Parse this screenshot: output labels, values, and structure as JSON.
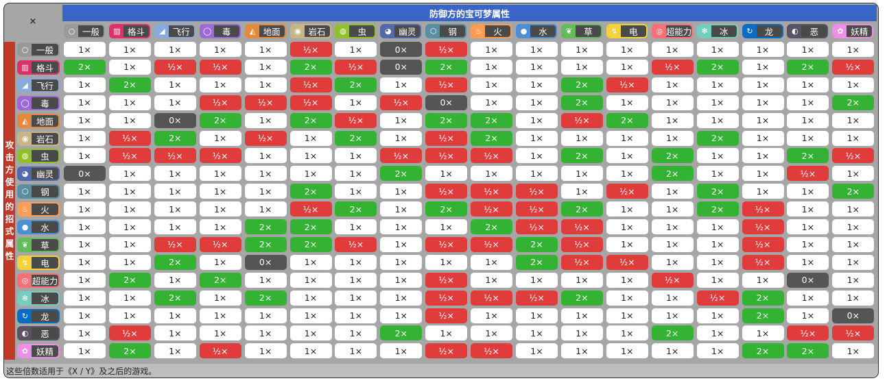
{
  "corner": "×",
  "title": "防御方的宝可梦属性",
  "side_label": [
    "攻",
    "击",
    "方",
    "使",
    "用",
    "的",
    "招",
    "式",
    "属",
    "性"
  ],
  "footer": "这些倍数适用于《X / Y》及之后的游戏。",
  "labels": {
    "1": "1×",
    "2": "2×",
    "0": "0×",
    "h": "½×"
  },
  "types": [
    {
      "name": "一般",
      "color": "#9a9a9a",
      "icon": "○"
    },
    {
      "name": "格斗",
      "color": "#e0306a",
      "icon": "▥"
    },
    {
      "name": "飞行",
      "color": "#89aadc",
      "icon": "◢"
    },
    {
      "name": "毒",
      "color": "#9b69d9",
      "icon": "◯"
    },
    {
      "name": "地面",
      "color": "#e58a3a",
      "icon": "◭"
    },
    {
      "name": "岩石",
      "color": "#c8b686",
      "icon": "◉"
    },
    {
      "name": "虫",
      "color": "#90c12c",
      "icon": "◍"
    },
    {
      "name": "幽灵",
      "color": "#5269ac",
      "icon": "◕"
    },
    {
      "name": "钢",
      "color": "#5a8ea1",
      "icon": "⬡"
    },
    {
      "name": "火",
      "color": "#ff9c54",
      "icon": "♨"
    },
    {
      "name": "水",
      "color": "#4d90d5",
      "icon": "●"
    },
    {
      "name": "草",
      "color": "#63bb5b",
      "icon": "❦"
    },
    {
      "name": "电",
      "color": "#f3d23b",
      "icon": "↯"
    },
    {
      "name": "超能力",
      "color": "#f97176",
      "icon": "◎"
    },
    {
      "name": "冰",
      "color": "#74cec0",
      "icon": "✻"
    },
    {
      "name": "龙",
      "color": "#0a6dc4",
      "icon": "↻"
    },
    {
      "name": "恶",
      "color": "#5a5366",
      "icon": "◐"
    },
    {
      "name": "妖精",
      "color": "#ec8fe6",
      "icon": "✿"
    }
  ],
  "matrix": [
    [
      "1",
      "1",
      "1",
      "1",
      "1",
      "h",
      "1",
      "0",
      "h",
      "1",
      "1",
      "1",
      "1",
      "1",
      "1",
      "1",
      "1",
      "1"
    ],
    [
      "2",
      "1",
      "h",
      "h",
      "1",
      "2",
      "h",
      "0",
      "2",
      "1",
      "1",
      "1",
      "1",
      "h",
      "2",
      "1",
      "2",
      "h"
    ],
    [
      "1",
      "2",
      "1",
      "1",
      "1",
      "h",
      "2",
      "1",
      "h",
      "1",
      "1",
      "2",
      "h",
      "1",
      "1",
      "1",
      "1",
      "1"
    ],
    [
      "1",
      "1",
      "1",
      "h",
      "h",
      "h",
      "1",
      "h",
      "0",
      "1",
      "1",
      "2",
      "1",
      "1",
      "1",
      "1",
      "1",
      "2"
    ],
    [
      "1",
      "1",
      "0",
      "2",
      "1",
      "2",
      "h",
      "1",
      "2",
      "2",
      "1",
      "h",
      "2",
      "1",
      "1",
      "1",
      "1",
      "1"
    ],
    [
      "1",
      "h",
      "2",
      "1",
      "h",
      "1",
      "2",
      "1",
      "h",
      "2",
      "1",
      "1",
      "1",
      "1",
      "2",
      "1",
      "1",
      "1"
    ],
    [
      "1",
      "h",
      "h",
      "h",
      "1",
      "1",
      "1",
      "h",
      "h",
      "h",
      "1",
      "2",
      "1",
      "2",
      "1",
      "1",
      "2",
      "h"
    ],
    [
      "0",
      "1",
      "1",
      "1",
      "1",
      "1",
      "1",
      "2",
      "1",
      "1",
      "1",
      "1",
      "1",
      "2",
      "1",
      "1",
      "h",
      "1"
    ],
    [
      "1",
      "1",
      "1",
      "1",
      "1",
      "2",
      "1",
      "1",
      "h",
      "h",
      "h",
      "1",
      "h",
      "1",
      "2",
      "1",
      "1",
      "2"
    ],
    [
      "1",
      "1",
      "1",
      "1",
      "1",
      "h",
      "2",
      "1",
      "2",
      "h",
      "h",
      "2",
      "1",
      "1",
      "2",
      "h",
      "1",
      "1"
    ],
    [
      "1",
      "1",
      "1",
      "1",
      "2",
      "2",
      "1",
      "1",
      "1",
      "2",
      "h",
      "h",
      "1",
      "1",
      "1",
      "h",
      "1",
      "1"
    ],
    [
      "1",
      "1",
      "h",
      "h",
      "2",
      "2",
      "h",
      "1",
      "h",
      "h",
      "2",
      "h",
      "1",
      "1",
      "1",
      "h",
      "1",
      "1"
    ],
    [
      "1",
      "1",
      "2",
      "1",
      "0",
      "1",
      "1",
      "1",
      "1",
      "1",
      "2",
      "h",
      "h",
      "1",
      "1",
      "h",
      "1",
      "1"
    ],
    [
      "1",
      "2",
      "1",
      "2",
      "1",
      "1",
      "1",
      "1",
      "h",
      "1",
      "1",
      "1",
      "1",
      "h",
      "1",
      "1",
      "0",
      "1"
    ],
    [
      "1",
      "1",
      "2",
      "1",
      "2",
      "1",
      "1",
      "1",
      "h",
      "h",
      "h",
      "2",
      "1",
      "1",
      "h",
      "2",
      "1",
      "1"
    ],
    [
      "1",
      "1",
      "1",
      "1",
      "1",
      "1",
      "1",
      "1",
      "h",
      "1",
      "1",
      "1",
      "1",
      "1",
      "1",
      "2",
      "1",
      "0"
    ],
    [
      "1",
      "h",
      "1",
      "1",
      "1",
      "1",
      "1",
      "2",
      "1",
      "1",
      "1",
      "1",
      "1",
      "2",
      "1",
      "1",
      "h",
      "h"
    ],
    [
      "1",
      "2",
      "1",
      "h",
      "1",
      "1",
      "1",
      "1",
      "h",
      "h",
      "1",
      "1",
      "1",
      "1",
      "1",
      "2",
      "2",
      "1"
    ]
  ]
}
